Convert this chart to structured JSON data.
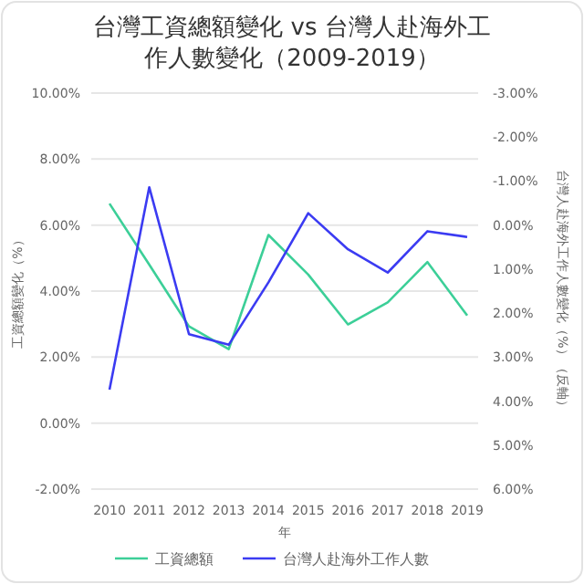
{
  "chart_data": {
    "type": "line",
    "title": "台灣工資總額變化 vs 台灣人赴海外工作人數變化（2009-2019）",
    "xlabel": "年",
    "ylabel": "工資總額變化（%）",
    "y2label": "台灣人赴海外工作人數變化（%）（反軸）",
    "categories": [
      "2010",
      "2011",
      "2012",
      "2013",
      "2014",
      "2015",
      "2016",
      "2017",
      "2018",
      "2019"
    ],
    "series": [
      {
        "name": "工資總額",
        "color": "#3ccf98",
        "values": [
          6.65,
          4.8,
          2.93,
          2.24,
          5.7,
          4.5,
          2.99,
          3.66,
          4.88,
          3.26
        ]
      },
      {
        "name": "台灣人赴海外工作人數",
        "color": "#3b3bf2",
        "axis": "y2",
        "values": [
          3.74,
          -0.86,
          2.48,
          2.72,
          1.3,
          -0.27,
          0.55,
          1.08,
          0.14,
          0.27
        ]
      }
    ],
    "ylim": [
      -2,
      10
    ],
    "yticks": [
      {
        "value": -2,
        "label": "-2.00%"
      },
      {
        "value": 0,
        "label": "0.00%"
      },
      {
        "value": 2,
        "label": "2.00%"
      },
      {
        "value": 4,
        "label": "4.00%"
      },
      {
        "value": 6,
        "label": "6.00%"
      },
      {
        "value": 8,
        "label": "8.00%"
      },
      {
        "value": 10,
        "label": "10.00%"
      }
    ],
    "y2lim": [
      6,
      -3
    ],
    "y2ticks": [
      {
        "value": -3,
        "label": "-3.00%"
      },
      {
        "value": -2,
        "label": "-2.00%"
      },
      {
        "value": -1,
        "label": "-1.00%"
      },
      {
        "value": 0,
        "label": "0.00%"
      },
      {
        "value": 1,
        "label": "1.00%"
      },
      {
        "value": 2,
        "label": "2.00%"
      },
      {
        "value": 3,
        "label": "3.00%"
      },
      {
        "value": 4,
        "label": "4.00%"
      },
      {
        "value": 5,
        "label": "5.00%"
      },
      {
        "value": 6,
        "label": "6.00%"
      }
    ],
    "grid": "y",
    "legend": "bottom",
    "marker": "none",
    "line_style": "solid"
  }
}
